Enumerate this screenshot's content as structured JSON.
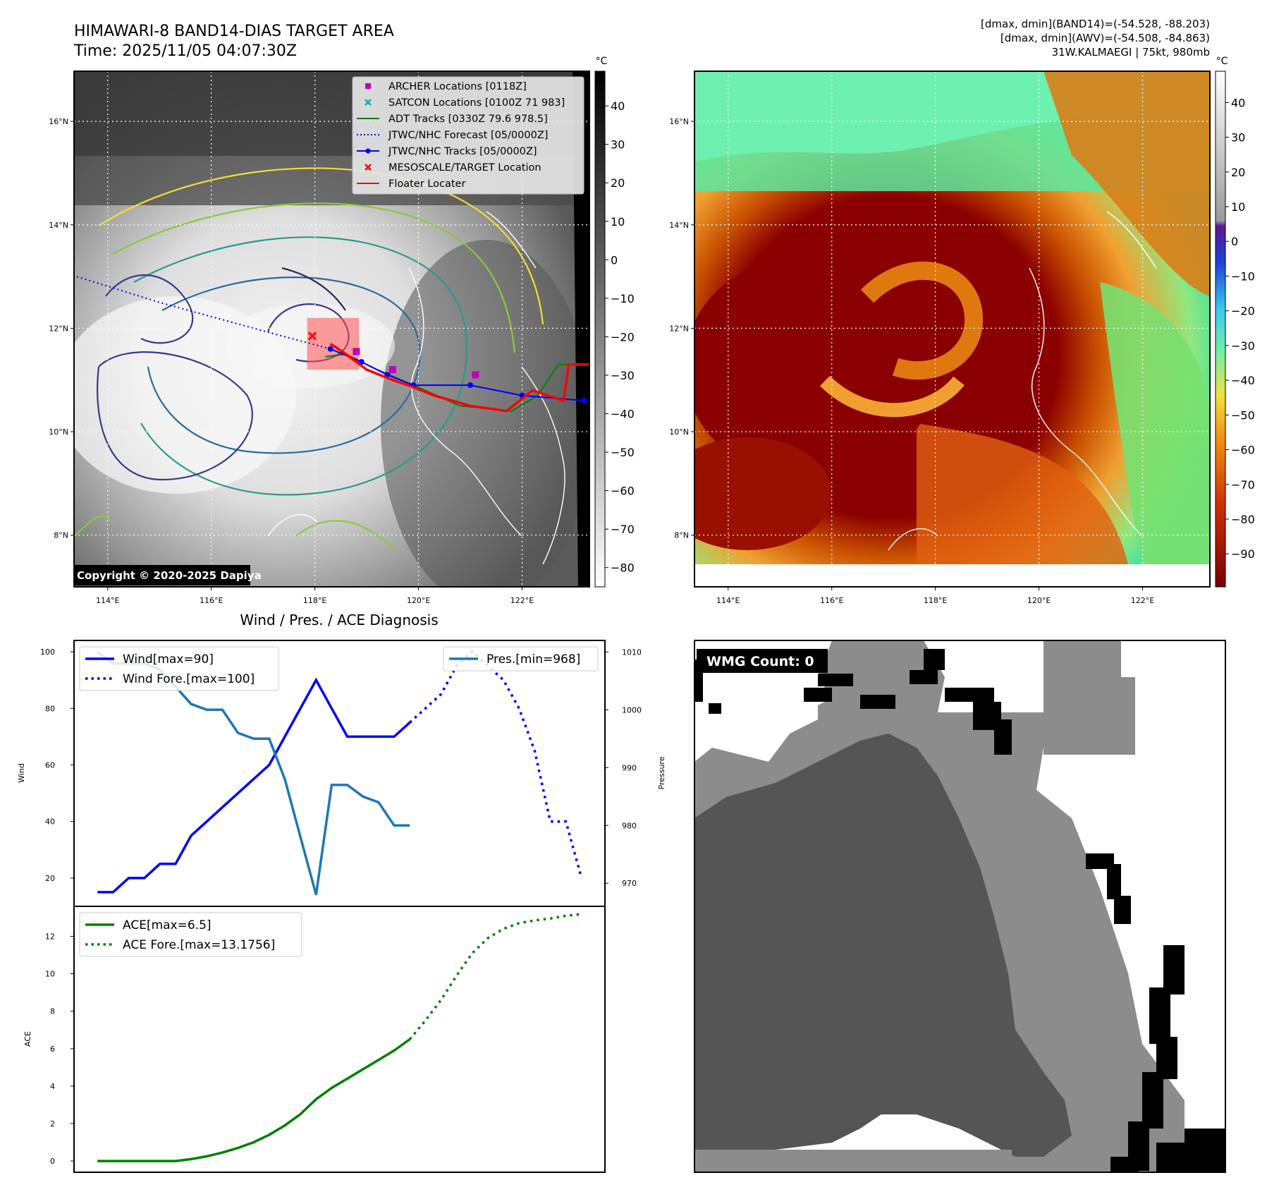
{
  "header": {
    "title_line1": "HIMAWARI-8 BAND14-DIAS TARGET AREA",
    "title_line2": "Time: 2025/11/05 04:07:30Z",
    "info_line1": "[dmax, dmin](BAND14)=(-54.528, -88.203)",
    "info_line2": "[dmax, dmin](AWV)=(-54.508, -84.863)",
    "info_line3": "31W.KALMAEGI | 75kt, 980mb"
  },
  "map_axes": {
    "lon_ticks": [
      "114°E",
      "116°E",
      "118°E",
      "120°E",
      "122°E"
    ],
    "lat_ticks": [
      "8°N",
      "10°N",
      "12°N",
      "14°N",
      "16°N"
    ],
    "lon_values": [
      114,
      116,
      118,
      120,
      122
    ],
    "lat_values": [
      8,
      10,
      12,
      14,
      16
    ],
    "lon_range": [
      113.35,
      123.3
    ],
    "lat_range": [
      7.0,
      16.97
    ]
  },
  "ir_panel": {
    "unit": "°C",
    "colorbar_ticks": [
      "40",
      "30",
      "20",
      "10",
      "0",
      "−10",
      "−20",
      "−30",
      "−40",
      "−50",
      "−60",
      "−70",
      "−80"
    ],
    "colorbar_values": [
      40,
      30,
      20,
      10,
      0,
      -10,
      -20,
      -30,
      -40,
      -50,
      -60,
      -70,
      -80
    ],
    "colorbar_range": [
      -85,
      49
    ],
    "copyright": "Copyright © 2020-2025 Dapiya",
    "legend": [
      {
        "label": "ARCHER Locations [0118Z]",
        "color": "#c000c0",
        "marker": "square"
      },
      {
        "label": "SATCON Locations [0100Z 71 983]",
        "color": "#00b0b0",
        "marker": "x"
      },
      {
        "label": "ADT Tracks [0330Z 79.6 978.5]",
        "color": "#008000",
        "marker": "line"
      },
      {
        "label": "JTWC/NHC Forecast [05/0000Z]",
        "color": "#0000ff",
        "marker": "dotted"
      },
      {
        "label": "JTWC/NHC Tracks [05/0000Z]",
        "color": "#0000ff",
        "marker": "line-dot"
      },
      {
        "label": "MESOSCALE/TARGET Location",
        "color": "#ff0000",
        "marker": "x"
      },
      {
        "label": "Floater Locater",
        "color": "#ff0000",
        "marker": "line"
      }
    ],
    "archer_points": [
      [
        118.8,
        11.55
      ],
      [
        119.5,
        11.2
      ],
      [
        121.1,
        11.1
      ]
    ],
    "jtwc_track": [
      [
        123.2,
        10.6
      ],
      [
        122.0,
        10.7
      ],
      [
        121.0,
        10.9
      ],
      [
        119.9,
        10.9
      ],
      [
        119.4,
        11.1
      ],
      [
        118.9,
        11.35
      ],
      [
        118.3,
        11.6
      ]
    ],
    "jtwc_forecast": [
      [
        118.3,
        11.6
      ],
      [
        117.0,
        11.95
      ],
      [
        115.0,
        12.5
      ],
      [
        113.4,
        13.0
      ]
    ],
    "adt_track": [
      [
        123.2,
        11.3
      ],
      [
        122.7,
        11.3
      ],
      [
        122.3,
        10.7
      ],
      [
        121.8,
        10.4
      ],
      [
        120.8,
        10.5
      ],
      [
        119.9,
        10.9
      ],
      [
        119.2,
        11.2
      ],
      [
        118.6,
        11.5
      ],
      [
        118.2,
        11.45
      ]
    ],
    "floater_track": [
      [
        123.3,
        11.3
      ],
      [
        122.9,
        11.3
      ],
      [
        122.8,
        10.6
      ],
      [
        122.2,
        10.8
      ],
      [
        121.7,
        10.4
      ],
      [
        121.0,
        10.5
      ],
      [
        120.3,
        10.7
      ],
      [
        119.8,
        10.9
      ],
      [
        119.5,
        11.0
      ],
      [
        119.0,
        11.2
      ],
      [
        118.6,
        11.5
      ],
      [
        118.3,
        11.7
      ]
    ],
    "target_box": {
      "lon": [
        117.85,
        118.85
      ],
      "lat": [
        11.2,
        12.2
      ]
    },
    "target_point": [
      117.95,
      11.85
    ]
  },
  "awv_panel": {
    "unit": "°C",
    "colorbar_ticks": [
      "40",
      "30",
      "20",
      "10",
      "0",
      "−10",
      "−20",
      "−30",
      "−40",
      "−50",
      "−60",
      "−70",
      "−80",
      "−90"
    ],
    "colorbar_values": [
      40,
      30,
      20,
      10,
      0,
      -10,
      -20,
      -30,
      -40,
      -50,
      -60,
      -70,
      -80,
      -90
    ],
    "colorbar_range": [
      -99.5,
      49
    ]
  },
  "diagnosis": {
    "title": "Wind / Pres. / ACE Diagnosis",
    "wind_ylabel": "Wind",
    "pres_ylabel": "Pressure",
    "ace_ylabel": "ACE",
    "wind_ticks": [
      "20",
      "40",
      "60",
      "80",
      "100"
    ],
    "pres_ticks": [
      "970",
      "980",
      "990",
      "1000",
      "1010"
    ],
    "ace_ticks": [
      "0",
      "2",
      "4",
      "6",
      "8",
      "10",
      "12"
    ]
  },
  "chart_data": [
    {
      "type": "line",
      "name": "wind-pressure",
      "x_range": [
        -1.5,
        32.5
      ],
      "ylim_wind": [
        10,
        104
      ],
      "ylim_pressure": [
        966,
        1012
      ],
      "series": [
        {
          "name": "Wind[max=90]",
          "axis": "left",
          "style": "solid",
          "color": "#0000ff",
          "x": [
            0,
            1,
            2,
            3,
            4,
            5,
            6,
            7,
            8,
            9,
            10,
            11,
            12,
            13,
            14,
            15,
            16,
            17,
            18,
            19,
            20
          ],
          "values": [
            15,
            15,
            20,
            20,
            25,
            25,
            35,
            40,
            45,
            50,
            55,
            60,
            70,
            80,
            90,
            80,
            70,
            70,
            70,
            70,
            75
          ]
        },
        {
          "name": "Wind Fore.[max=100]",
          "axis": "left",
          "style": "dotted",
          "color": "#0000ff",
          "x": [
            20,
            21,
            22,
            23,
            24,
            25,
            26,
            27,
            28,
            29,
            30,
            31
          ],
          "values": [
            75,
            80,
            85,
            95,
            100,
            95,
            90,
            80,
            65,
            40,
            40,
            20
          ]
        },
        {
          "name": "Pres.[min=968]",
          "axis": "right",
          "style": "solid",
          "color": "#1f77b4",
          "x": [
            0,
            1,
            2,
            3,
            4,
            5,
            6,
            7,
            8,
            9,
            10,
            11,
            12,
            13,
            14,
            15,
            16,
            17,
            18,
            19,
            20
          ],
          "values": [
            1010,
            1008,
            1008,
            1008,
            1007,
            1004,
            1001,
            1000,
            1000,
            996,
            995,
            995,
            988,
            978,
            968,
            987,
            987,
            985,
            984,
            980,
            980
          ]
        }
      ]
    },
    {
      "type": "line",
      "name": "ace",
      "x_range": [
        -1.5,
        32.5
      ],
      "ylim": [
        -0.6,
        13.6
      ],
      "series": [
        {
          "name": "ACE[max=6.5]",
          "style": "solid",
          "color": "#008000",
          "x": [
            0,
            1,
            2,
            3,
            4,
            5,
            6,
            7,
            8,
            9,
            10,
            11,
            12,
            13,
            14,
            15,
            16,
            17,
            18,
            19,
            20
          ],
          "values": [
            0,
            0,
            0,
            0,
            0,
            0,
            0.1,
            0.25,
            0.45,
            0.7,
            1.0,
            1.4,
            1.9,
            2.5,
            3.3,
            3.9,
            4.4,
            4.9,
            5.4,
            5.9,
            6.5
          ]
        },
        {
          "name": "ACE Fore.[max=13.1756]",
          "style": "dotted",
          "color": "#008000",
          "x": [
            20,
            21,
            22,
            23,
            24,
            25,
            26,
            27,
            28,
            29,
            30,
            31
          ],
          "values": [
            6.5,
            7.5,
            8.6,
            9.9,
            11.1,
            11.9,
            12.4,
            12.7,
            12.85,
            12.95,
            13.1,
            13.18
          ]
        }
      ]
    }
  ],
  "wmg_panel": {
    "label": "WMG Count: 0"
  }
}
